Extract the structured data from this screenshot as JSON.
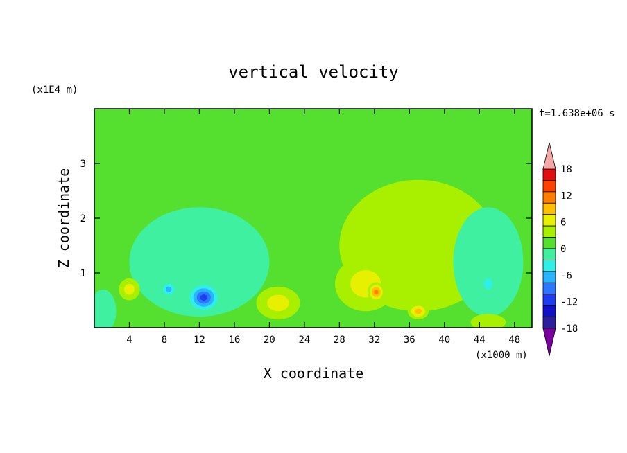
{
  "chart_data": {
    "type": "heatmap",
    "title": "vertical velocity",
    "xlabel": "X coordinate",
    "ylabel": "Z coordinate",
    "x_unit": "(x1000 m)",
    "y_unit": "(x1E4 m)",
    "time_label": "t=1.638e+06 s",
    "xlim": [
      0,
      50
    ],
    "ylim": [
      0,
      4
    ],
    "x_ticks": [
      4,
      8,
      12,
      16,
      20,
      24,
      28,
      32,
      36,
      40,
      44,
      48
    ],
    "y_ticks": [
      1,
      2,
      3
    ],
    "background_level": 0,
    "colorbar": {
      "tick_labels": [
        "18",
        "12",
        "6",
        "0",
        "-6",
        "-12",
        "-18"
      ],
      "tick_values": [
        18,
        12,
        6,
        0,
        -6,
        -12,
        -18
      ],
      "levels": [
        -21,
        -18,
        -15,
        -12,
        -9,
        -6,
        -3,
        0,
        3,
        6,
        9,
        12,
        15,
        18,
        21
      ],
      "colors": [
        "#7a00a0",
        "#2a1f9c",
        "#1010c8",
        "#1e3cf0",
        "#2a78ff",
        "#28b4ff",
        "#2ef0e8",
        "#3ef0a0",
        "#55e030",
        "#a8f000",
        "#e6f000",
        "#ffc000",
        "#ff8000",
        "#ff4000",
        "#e01010",
        "#f4a8a8"
      ]
    },
    "features": [
      {
        "x": 12.5,
        "z": 0.55,
        "value": -15,
        "rx": 2.0,
        "rz": 0.28
      },
      {
        "x": 8.5,
        "z": 0.7,
        "value": -10,
        "rx": 1.0,
        "rz": 0.15
      },
      {
        "x": 32.2,
        "z": 0.65,
        "value": 13,
        "rx": 1.0,
        "rz": 0.18
      },
      {
        "x": 37,
        "z": 0.3,
        "value": 10,
        "rx": 1.2,
        "rz": 0.15
      },
      {
        "x": 4,
        "z": 0.7,
        "value": 8,
        "rx": 1.2,
        "rz": 0.2
      },
      {
        "x": 21,
        "z": 0.45,
        "value": 6,
        "rx": 2.5,
        "rz": 0.3
      },
      {
        "x": 31,
        "z": 0.8,
        "value": 7,
        "rx": 3.5,
        "rz": 0.5
      },
      {
        "x": 37,
        "z": 1.5,
        "value": 3,
        "rx": 9,
        "rz": 1.2
      },
      {
        "x": 12,
        "z": 1.2,
        "value": -3,
        "rx": 8,
        "rz": 1.0
      },
      {
        "x": 45,
        "z": 1.2,
        "value": -3,
        "rx": 4,
        "rz": 1.0
      },
      {
        "x": 45,
        "z": 0.8,
        "value": -7,
        "rx": 1.0,
        "rz": 0.2
      },
      {
        "x": 1,
        "z": 0.3,
        "value": -5,
        "rx": 1.5,
        "rz": 0.4
      },
      {
        "x": 45,
        "z": 0.1,
        "value": 5,
        "rx": 2.0,
        "rz": 0.15
      }
    ]
  }
}
